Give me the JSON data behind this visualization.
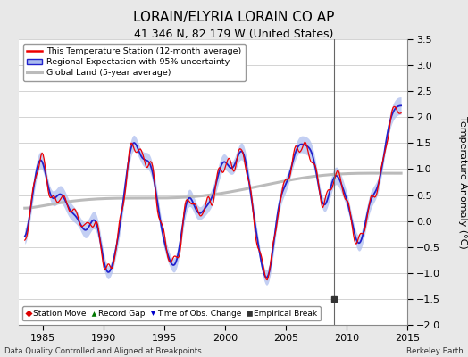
{
  "title": "LORAIN/ELYRIA LORAIN CO AP",
  "subtitle": "41.346 N, 82.179 W (United States)",
  "ylabel": "Temperature Anomaly (°C)",
  "xlabel_left": "Data Quality Controlled and Aligned at Breakpoints",
  "xlabel_right": "Berkeley Earth",
  "xlim": [
    1983.0,
    2015.0
  ],
  "ylim": [
    -2.0,
    3.5
  ],
  "yticks": [
    -2.0,
    -1.5,
    -1.0,
    -0.5,
    0.0,
    0.5,
    1.0,
    1.5,
    2.0,
    2.5,
    3.0,
    3.5
  ],
  "xticks": [
    1985,
    1990,
    1995,
    2000,
    2005,
    2010,
    2015
  ],
  "bg_color": "#e8e8e8",
  "plot_bg_color": "#ffffff",
  "grid_color": "#cccccc",
  "empirical_break_x": 2009.0,
  "empirical_break_y": -1.5,
  "vertical_line_x": 2009.0,
  "legend_labels": [
    "This Temperature Station (12-month average)",
    "Regional Expectation with 95% uncertainty",
    "Global Land (5-year average)"
  ],
  "station_move_color": "#dd0000",
  "record_gap_color": "#007700",
  "time_obs_color": "#0000cc",
  "empirical_break_color": "#333333",
  "regional_color": "#2222cc",
  "regional_band_color": "#aabbee",
  "station_color": "#ee0000",
  "global_color": "#bbbbbb"
}
